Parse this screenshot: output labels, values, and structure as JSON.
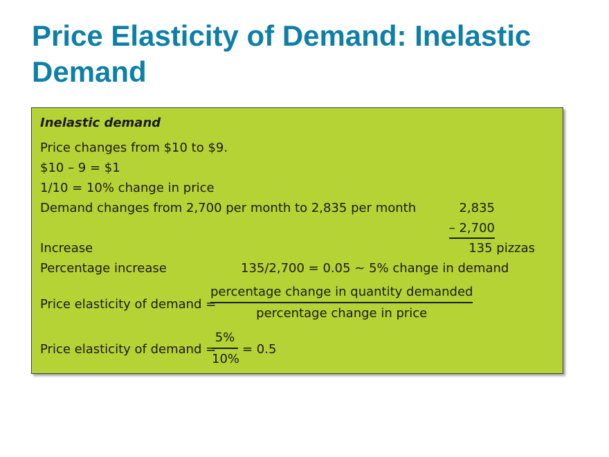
{
  "page": {
    "title": "Price Elasticity of Demand: Inelastic Demand"
  },
  "box": {
    "heading": "Inelastic demand",
    "lines": {
      "price_change": "Price changes from $10 to $9.",
      "difference": "$10 – 9 = $1",
      "pct_price": "1/10 = 10% change in price",
      "demand_change": "Demand changes from 2,700 per month to 2,835 per month",
      "increase_label": "Increase",
      "pct_increase_label": "Percentage increase",
      "pct_increase_calc": "135/2,700 = 0.05 ~ 5% change in demand"
    },
    "subtraction": {
      "minuend": "2,835",
      "subtrahend": "– 2,700",
      "result": "135 pizzas"
    },
    "formula": {
      "label": "Price elasticity of demand =",
      "numerator": "percentage change in quantity demanded",
      "denominator": "percentage change in price"
    },
    "result": {
      "label": "Price elasticity of demand =",
      "numerator": "5%",
      "denominator": "10%",
      "value": "= 0.5"
    }
  },
  "colors": {
    "title": "#0e7fa6",
    "box_background": "#b5d334",
    "text": "#1a1a1a"
  }
}
